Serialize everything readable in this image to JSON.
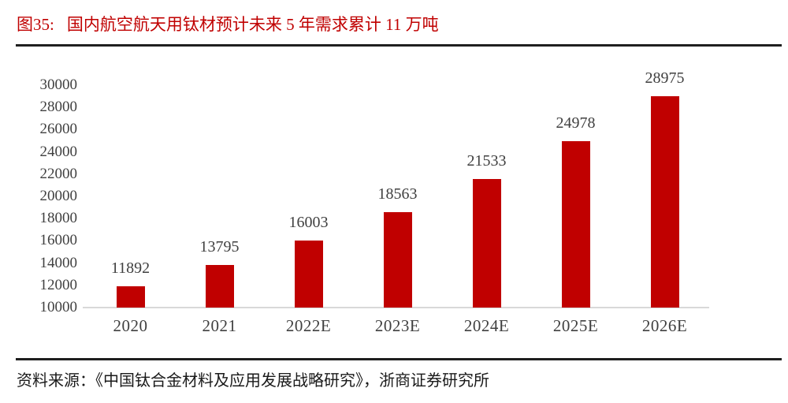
{
  "header": {
    "figure_label": "图35:",
    "title": "国内航空航天用钛材预计未来 5 年需求累计 11 万吨"
  },
  "footer": {
    "source": "资料来源：《中国钛合金材料及应用发展战略研究》，浙商证券研究所"
  },
  "chart_data": {
    "type": "bar",
    "title": "国内航空航天用钛材预计未来 5 年需求累计 11 万吨",
    "categories": [
      "2020",
      "2021",
      "2022E",
      "2023E",
      "2024E",
      "2025E",
      "2026E"
    ],
    "values": [
      11892,
      13795,
      16003,
      18563,
      21533,
      24978,
      28975
    ],
    "xlabel": "",
    "ylabel": "",
    "ylim": [
      10000,
      30000
    ],
    "yticks": [
      10000,
      12000,
      14000,
      16000,
      18000,
      20000,
      22000,
      24000,
      26000,
      28000,
      30000
    ],
    "grid": false,
    "legend": null,
    "bar_color": "#c00000",
    "label_color": "#404040",
    "axis_line_color": "#d9d9d9"
  },
  "colors": {
    "accent_red": "#c00000",
    "text_gray": "#404040",
    "rule_dark": "#1f1f1f",
    "source_text": "#1a1a1a"
  }
}
